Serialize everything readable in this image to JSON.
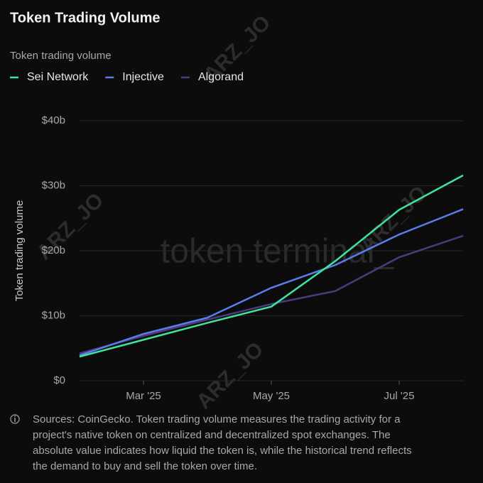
{
  "chart_data": {
    "type": "line",
    "title": "Token Trading Volume",
    "subtitle": "Token trading volume",
    "y_label": "Token trading volume",
    "categories": [
      null,
      "Mar '25",
      null,
      "May '25",
      null,
      "Jul '25",
      null
    ],
    "series": [
      {
        "name": "Sei Network",
        "color": "#3fe39b",
        "values": [
          3.7,
          6.3,
          8.9,
          11.4,
          18.4,
          26.3,
          31.6
        ]
      },
      {
        "name": "Injective",
        "color": "#5b7cec",
        "values": [
          3.9,
          7.2,
          9.7,
          14.3,
          17.8,
          22.5,
          26.4
        ]
      },
      {
        "name": "Algorand",
        "color": "#4b3a7c",
        "values": [
          4.2,
          6.9,
          9.4,
          11.8,
          13.8,
          19.0,
          22.3
        ]
      }
    ],
    "ylim": [
      0,
      40
    ],
    "yticks": [
      {
        "value": 0,
        "label": "$0"
      },
      {
        "value": 10,
        "label": "$10b"
      },
      {
        "value": 20,
        "label": "$20b"
      },
      {
        "value": 30,
        "label": "$30b"
      },
      {
        "value": 40,
        "label": "$40b"
      }
    ],
    "grid": true,
    "legend": "top-left",
    "watermark": "token terminal_",
    "watermark_user": "ARZ_JO",
    "footnote": [
      "Sources: CoinGecko. Token trading volume measures the trading activity for a",
      "project's native token on centralized and decentralized spot exchanges. The",
      "absolute value indicates how liquid the token is, while the historical trend reflects",
      "the demand to buy and sell the token over time."
    ]
  }
}
